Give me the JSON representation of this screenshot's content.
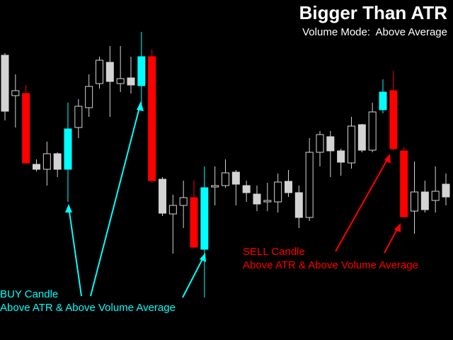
{
  "chart_data": {
    "type": "candlestick",
    "title": "Bigger Than ATR",
    "subtitle": "Volume Mode:  Above Average",
    "annotations": [
      {
        "lines": [
          "BUY Candle",
          "Above ATR & Above Volume Average"
        ],
        "color": "#00ffff"
      },
      {
        "lines": [
          "SELL Candle",
          "Above ATR & Above Volume Average"
        ],
        "color": "#ff0000"
      }
    ],
    "ylim": [
      0,
      480
    ],
    "open": [
      402,
      345,
      348,
      248,
      241,
      263,
      241,
      300,
      328,
      362,
      392,
      362,
      370,
      359,
      400,
      227,
      178,
      190,
      201,
      128,
      216,
      218,
      237,
      218,
      206,
      195,
      195,
      224,
      208,
      173,
      265,
      287,
      267,
      250,
      304,
      268,
      325,
      352,
      267,
      182,
      209,
      197,
      220
    ],
    "high": [
      405,
      375,
      360,
      255,
      280,
      265,
      335,
      340,
      375,
      400,
      415,
      415,
      400,
      435,
      410,
      230,
      205,
      225,
      225,
      245,
      245,
      255,
      240,
      225,
      218,
      222,
      235,
      240,
      218,
      285,
      295,
      295,
      270,
      315,
      305,
      335,
      368,
      380,
      272,
      252,
      225,
      245,
      235
    ],
    "low": [
      310,
      300,
      248,
      238,
      218,
      230,
      195,
      285,
      315,
      355,
      315,
      350,
      348,
      330,
      222,
      175,
      122,
      158,
      130,
      60,
      190,
      215,
      190,
      195,
      182,
      182,
      180,
      202,
      158,
      168,
      245,
      230,
      232,
      242,
      265,
      265,
      320,
      268,
      172,
      150,
      180,
      180,
      190
    ],
    "close": [
      323,
      352,
      250,
      241,
      263,
      241,
      298,
      330,
      358,
      395,
      365,
      369,
      360,
      400,
      225,
      179,
      190,
      201,
      131,
      215,
      218,
      236,
      220,
      208,
      192,
      197,
      223,
      208,
      173,
      265,
      290,
      267,
      251,
      302,
      268,
      322,
      350,
      270,
      174,
      209,
      184,
      210,
      202
    ],
    "colors": [
      "#d3d3d3",
      "#d3d3d3",
      "#ff0000",
      "#d3d3d3",
      "#d3d3d3",
      "#d3d3d3",
      "#00ffff",
      "#d3d3d3",
      "#d3d3d3",
      "#d3d3d3",
      "#d3d3d3",
      "#d3d3d3",
      "#d3d3d3",
      "#00ffff",
      "#ff0000",
      "#d3d3d3",
      "#d3d3d3",
      "#d3d3d3",
      "#ff0000",
      "#00ffff",
      "#d3d3d3",
      "#d3d3d3",
      "#d3d3d3",
      "#d3d3d3",
      "#d3d3d3",
      "#d3d3d3",
      "#d3d3d3",
      "#d3d3d3",
      "#d3d3d3",
      "#d3d3d3",
      "#d3d3d3",
      "#d3d3d3",
      "#d3d3d3",
      "#d3d3d3",
      "#d3d3d3",
      "#d3d3d3",
      "#00ffff",
      "#ff0000",
      "#ff0000",
      "#d3d3d3",
      "#d3d3d3",
      "#d3d3d3",
      "#d3d3d3"
    ],
    "fills": [
      "#d3d3d3",
      "#000000",
      "#ff0000",
      "#d3d3d3",
      "#000000",
      "#d3d3d3",
      "#00ffff",
      "#000000",
      "#000000",
      "#000000",
      "#d3d3d3",
      "#000000",
      "#d3d3d3",
      "#00ffff",
      "#ff0000",
      "#d3d3d3",
      "#000000",
      "#000000",
      "#ff0000",
      "#00ffff",
      "#000000",
      "#000000",
      "#d3d3d3",
      "#d3d3d3",
      "#d3d3d3",
      "#000000",
      "#000000",
      "#d3d3d3",
      "#d3d3d3",
      "#000000",
      "#000000",
      "#d3d3d3",
      "#d3d3d3",
      "#000000",
      "#d3d3d3",
      "#000000",
      "#00ffff",
      "#ff0000",
      "#ff0000",
      "#000000",
      "#d3d3d3",
      "#000000",
      "#d3d3d3"
    ]
  }
}
